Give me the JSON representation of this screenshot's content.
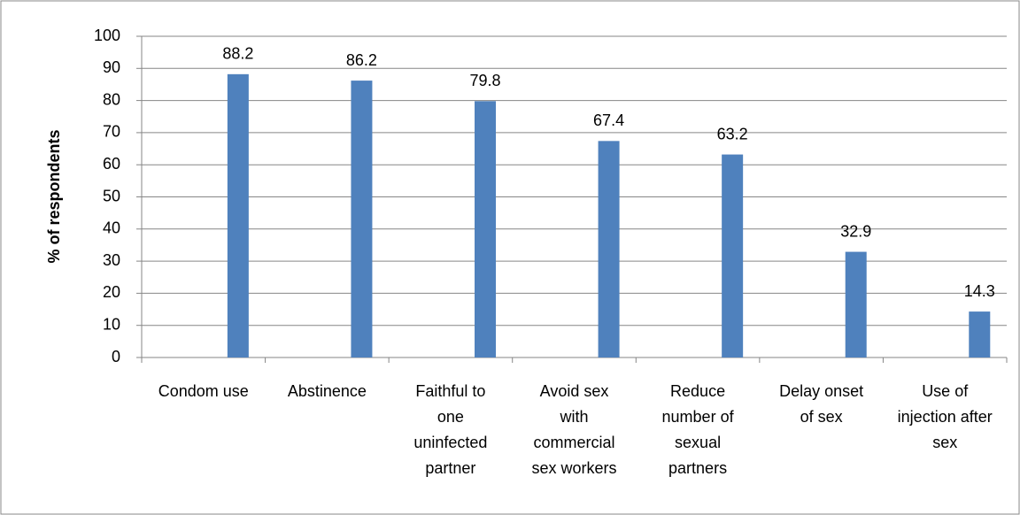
{
  "chart_data": {
    "type": "bar",
    "y_axis_label": "% of respondents",
    "categories": [
      "Condom use",
      "Abstinence",
      "Faithful to one uninfected partner",
      "Avoid sex with commercial sex workers",
      "Reduce number of sexual partners",
      "Delay onset of sex",
      "Use of injection after sex"
    ],
    "values": [
      88.2,
      86.2,
      79.8,
      67.4,
      63.2,
      32.9,
      14.3
    ],
    "color": "#4f81bd",
    "ylim": [
      0,
      100
    ],
    "yticks": [
      0,
      10,
      20,
      30,
      40,
      50,
      60,
      70,
      80,
      90,
      100
    ],
    "grid": true
  }
}
